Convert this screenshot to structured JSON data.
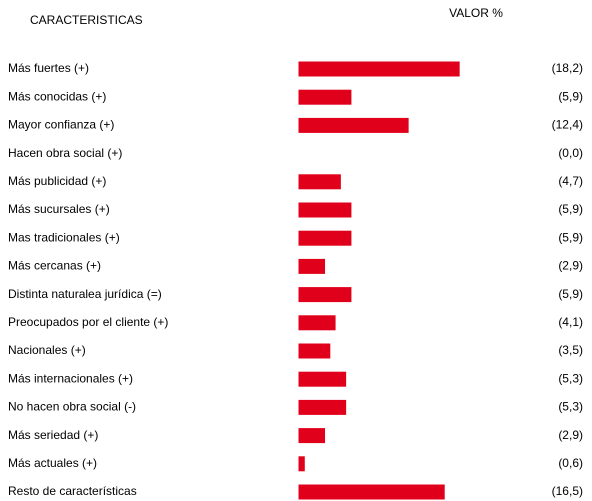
{
  "chart_data": {
    "type": "bar",
    "orientation": "horizontal",
    "category_header": "CARACTERISTICAS",
    "value_header": "VALOR %",
    "color": "#e0001b",
    "categories": [
      "Más fuertes (+)",
      "Más conocidas (+)",
      "Mayor confianza (+)",
      "Hacen obra social (+)",
      "Más publicidad (+)",
      "Más sucursales (+)",
      "Mas tradicionales (+)",
      "Más cercanas (+)",
      "Distinta naturalea jurídica (=)",
      "Preocupados por el cliente (+)",
      "Nacionales (+)",
      "Más internacionales (+)",
      "No hacen obra social (-)",
      "Más seriedad (+)",
      "Más actuales (+)",
      "Resto de características"
    ],
    "values": [
      18.2,
      5.9,
      12.4,
      0.0,
      4.7,
      5.9,
      5.9,
      2.9,
      5.9,
      4.1,
      3.5,
      5.3,
      5.3,
      2.9,
      0.6,
      16.5
    ],
    "value_labels": [
      "(18,2)",
      "(5,9)",
      "(12,4)",
      "(0,0)",
      "(4,7)",
      "(5,9)",
      "(5,9)",
      "(2,9)",
      "(5,9)",
      "(4,1)",
      "(3,5)",
      "(5,3)",
      "(5,3)",
      "(2,9)",
      "(0,6)",
      "(16,5)"
    ]
  }
}
